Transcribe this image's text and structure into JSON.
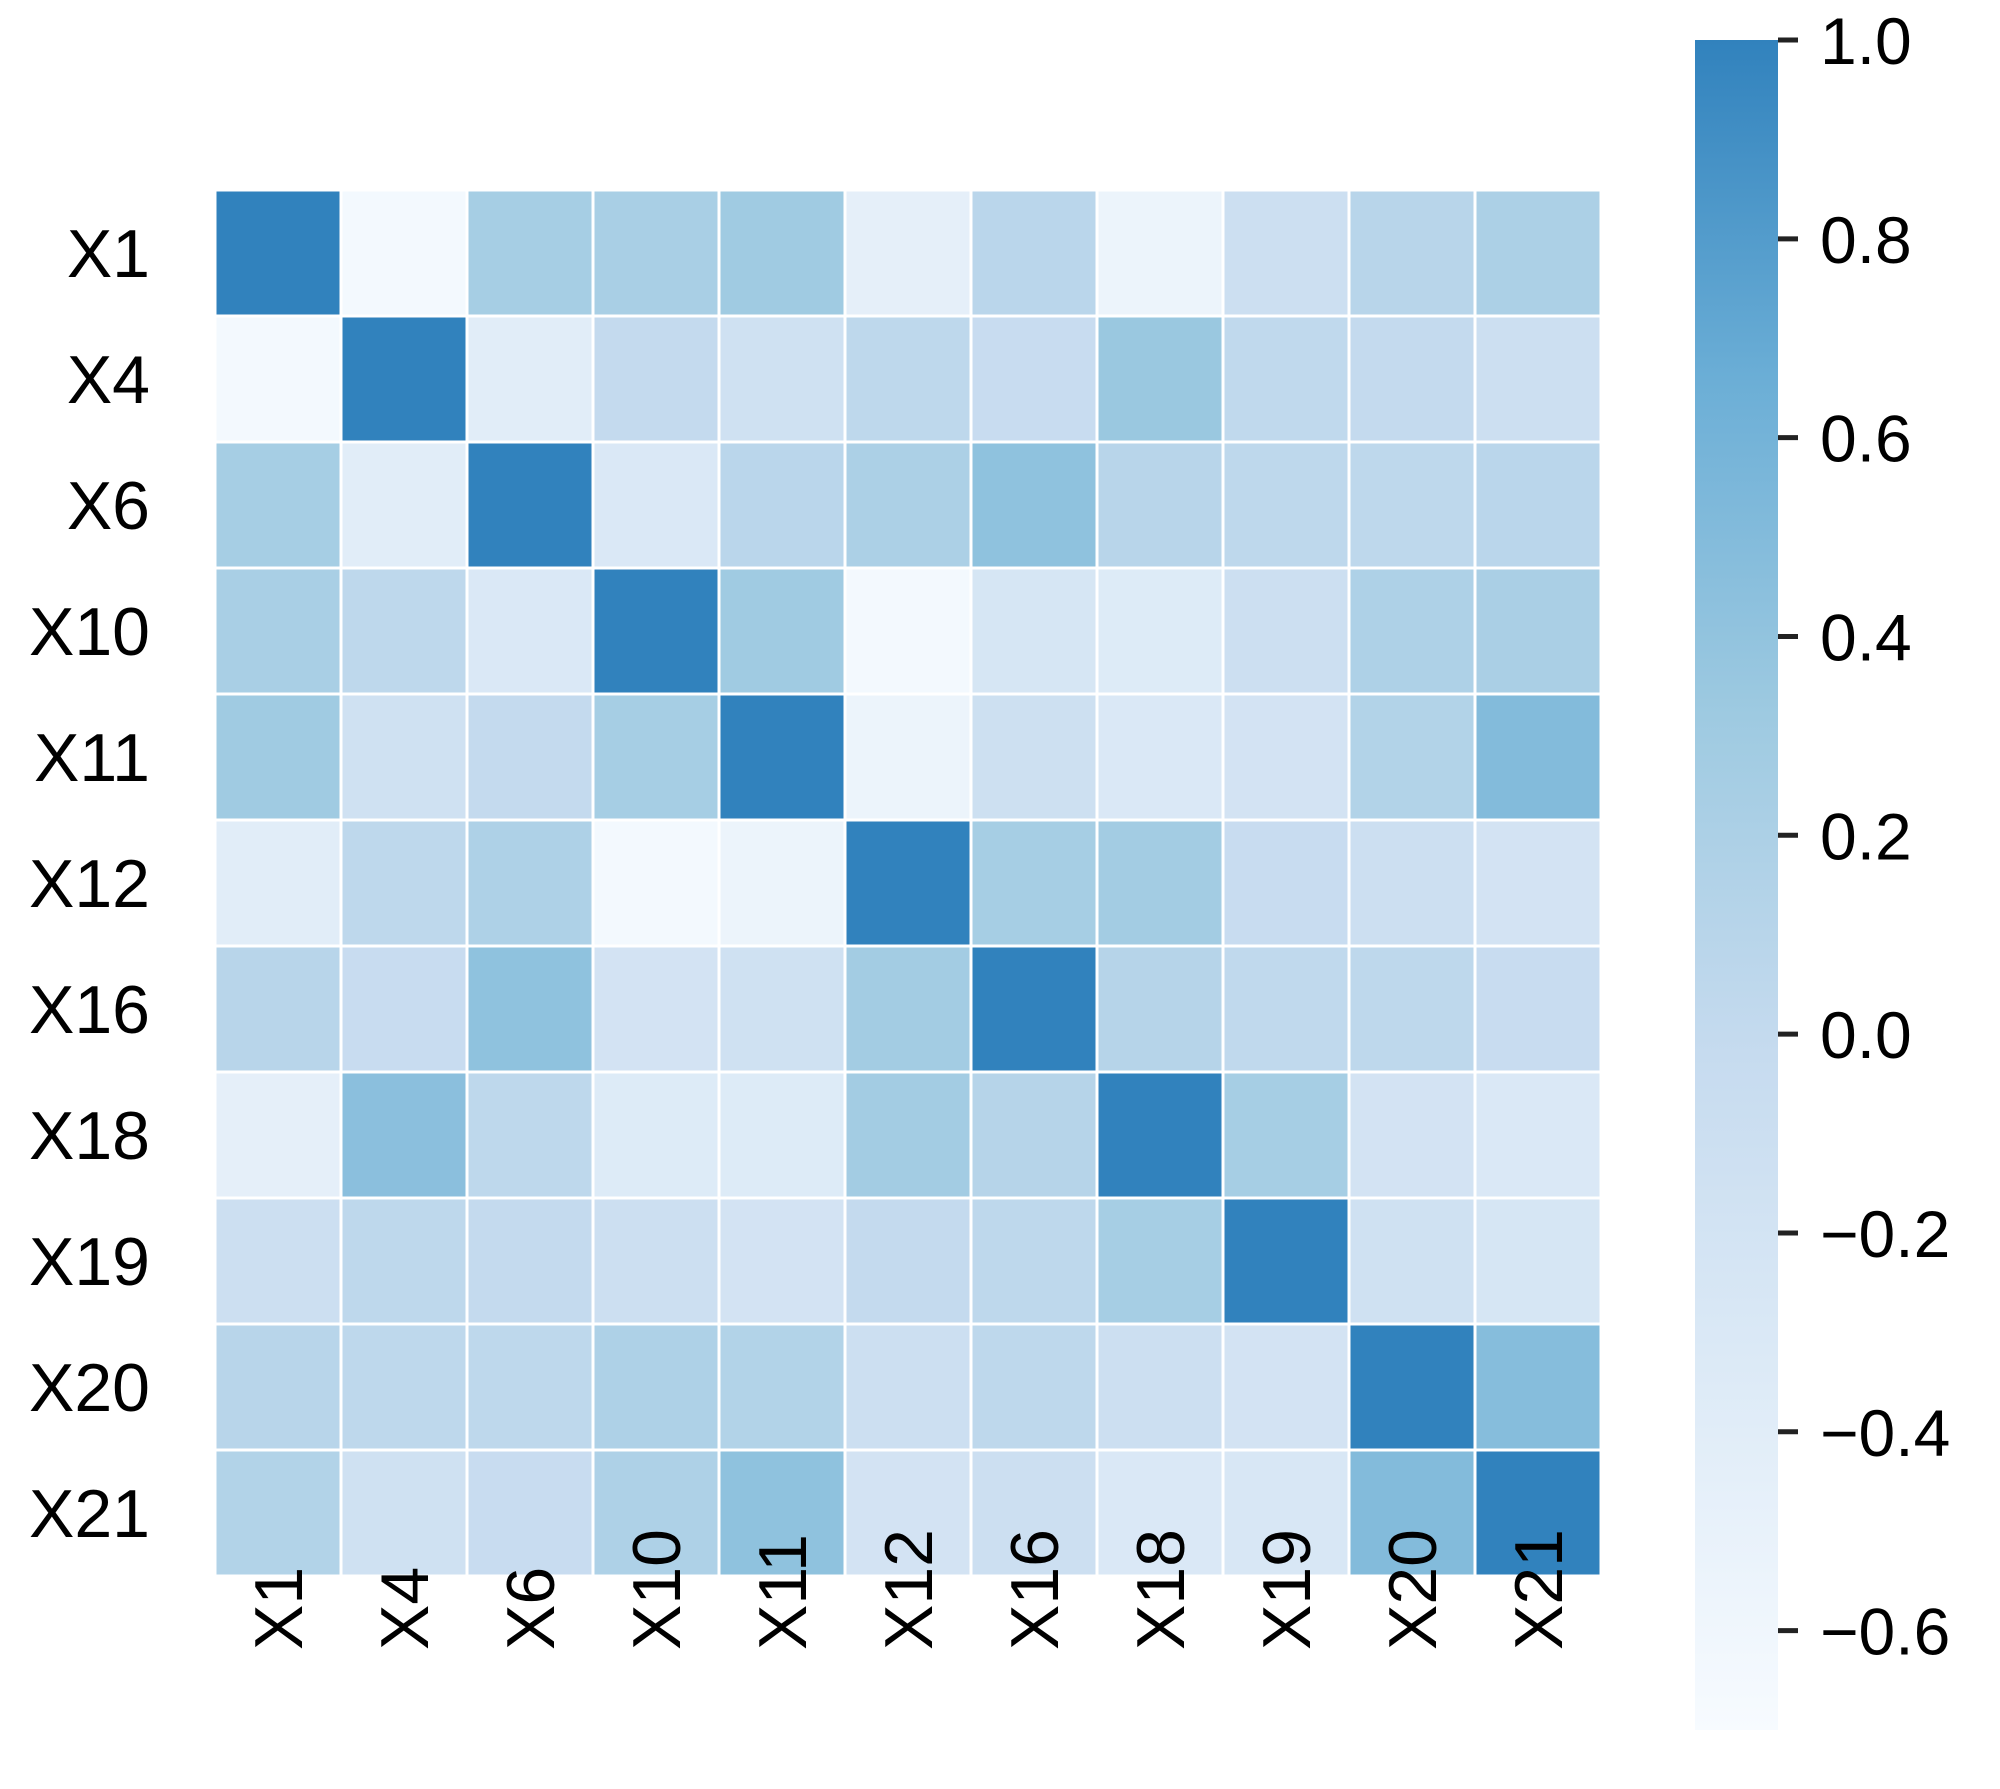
{
  "chart_data": {
    "type": "heatmap",
    "title": "",
    "xlabel": "",
    "ylabel": "",
    "x_labels": [
      "X1",
      "X4",
      "X6",
      "X10",
      "X11",
      "X12",
      "X16",
      "X18",
      "X19",
      "X20",
      "X21"
    ],
    "y_labels": [
      "X1",
      "X4",
      "X6",
      "X10",
      "X11",
      "X12",
      "X16",
      "X18",
      "X19",
      "X20",
      "X21"
    ],
    "values": [
      [
        1.0,
        -0.65,
        0.25,
        0.23,
        0.3,
        -0.45,
        0.08,
        -0.55,
        -0.1,
        0.1,
        0.2
      ],
      [
        -0.65,
        1.0,
        -0.4,
        0.0,
        -0.15,
        0.05,
        -0.05,
        0.35,
        0.03,
        0.0,
        -0.1
      ],
      [
        0.25,
        -0.4,
        1.0,
        -0.3,
        0.08,
        0.2,
        0.42,
        0.1,
        0.05,
        0.05,
        0.08
      ],
      [
        0.23,
        0.05,
        -0.3,
        1.0,
        0.3,
        -0.65,
        -0.25,
        -0.35,
        -0.1,
        0.18,
        0.22
      ],
      [
        0.3,
        -0.15,
        0.0,
        0.25,
        1.0,
        -0.55,
        -0.12,
        -0.3,
        -0.2,
        0.15,
        0.5
      ],
      [
        -0.4,
        0.05,
        0.18,
        -0.65,
        -0.55,
        1.0,
        0.25,
        0.28,
        -0.05,
        -0.1,
        -0.2
      ],
      [
        0.1,
        -0.05,
        0.42,
        -0.2,
        -0.15,
        0.28,
        1.0,
        0.12,
        0.03,
        0.05,
        -0.05
      ],
      [
        -0.45,
        0.45,
        0.05,
        -0.35,
        -0.35,
        0.28,
        0.12,
        1.0,
        0.25,
        -0.2,
        -0.3
      ],
      [
        -0.1,
        0.05,
        0.0,
        -0.1,
        -0.2,
        0.0,
        0.05,
        0.25,
        1.0,
        -0.15,
        -0.25
      ],
      [
        0.1,
        0.05,
        0.05,
        0.18,
        0.15,
        -0.1,
        0.05,
        -0.1,
        -0.2,
        1.0,
        0.48
      ],
      [
        0.15,
        -0.15,
        -0.05,
        0.18,
        0.42,
        -0.2,
        -0.1,
        -0.3,
        -0.28,
        0.5,
        1.0
      ]
    ],
    "colorbar": {
      "min": -0.7,
      "max": 1.0,
      "ticks": [
        1.0,
        0.8,
        0.6,
        0.4,
        0.2,
        0.0,
        -0.2,
        -0.4,
        -0.6
      ],
      "tick_labels": [
        "1.0",
        "0.8",
        "0.6",
        "0.4",
        "0.2",
        "0.0",
        "−0.2",
        "−0.4",
        "−0.6"
      ]
    },
    "colormap": [
      "#f7fbff",
      "#deebf7",
      "#c6dbef",
      "#9ecae1",
      "#6baed6",
      "#3182bd"
    ],
    "grid": false,
    "legend": "colorbar-right"
  }
}
